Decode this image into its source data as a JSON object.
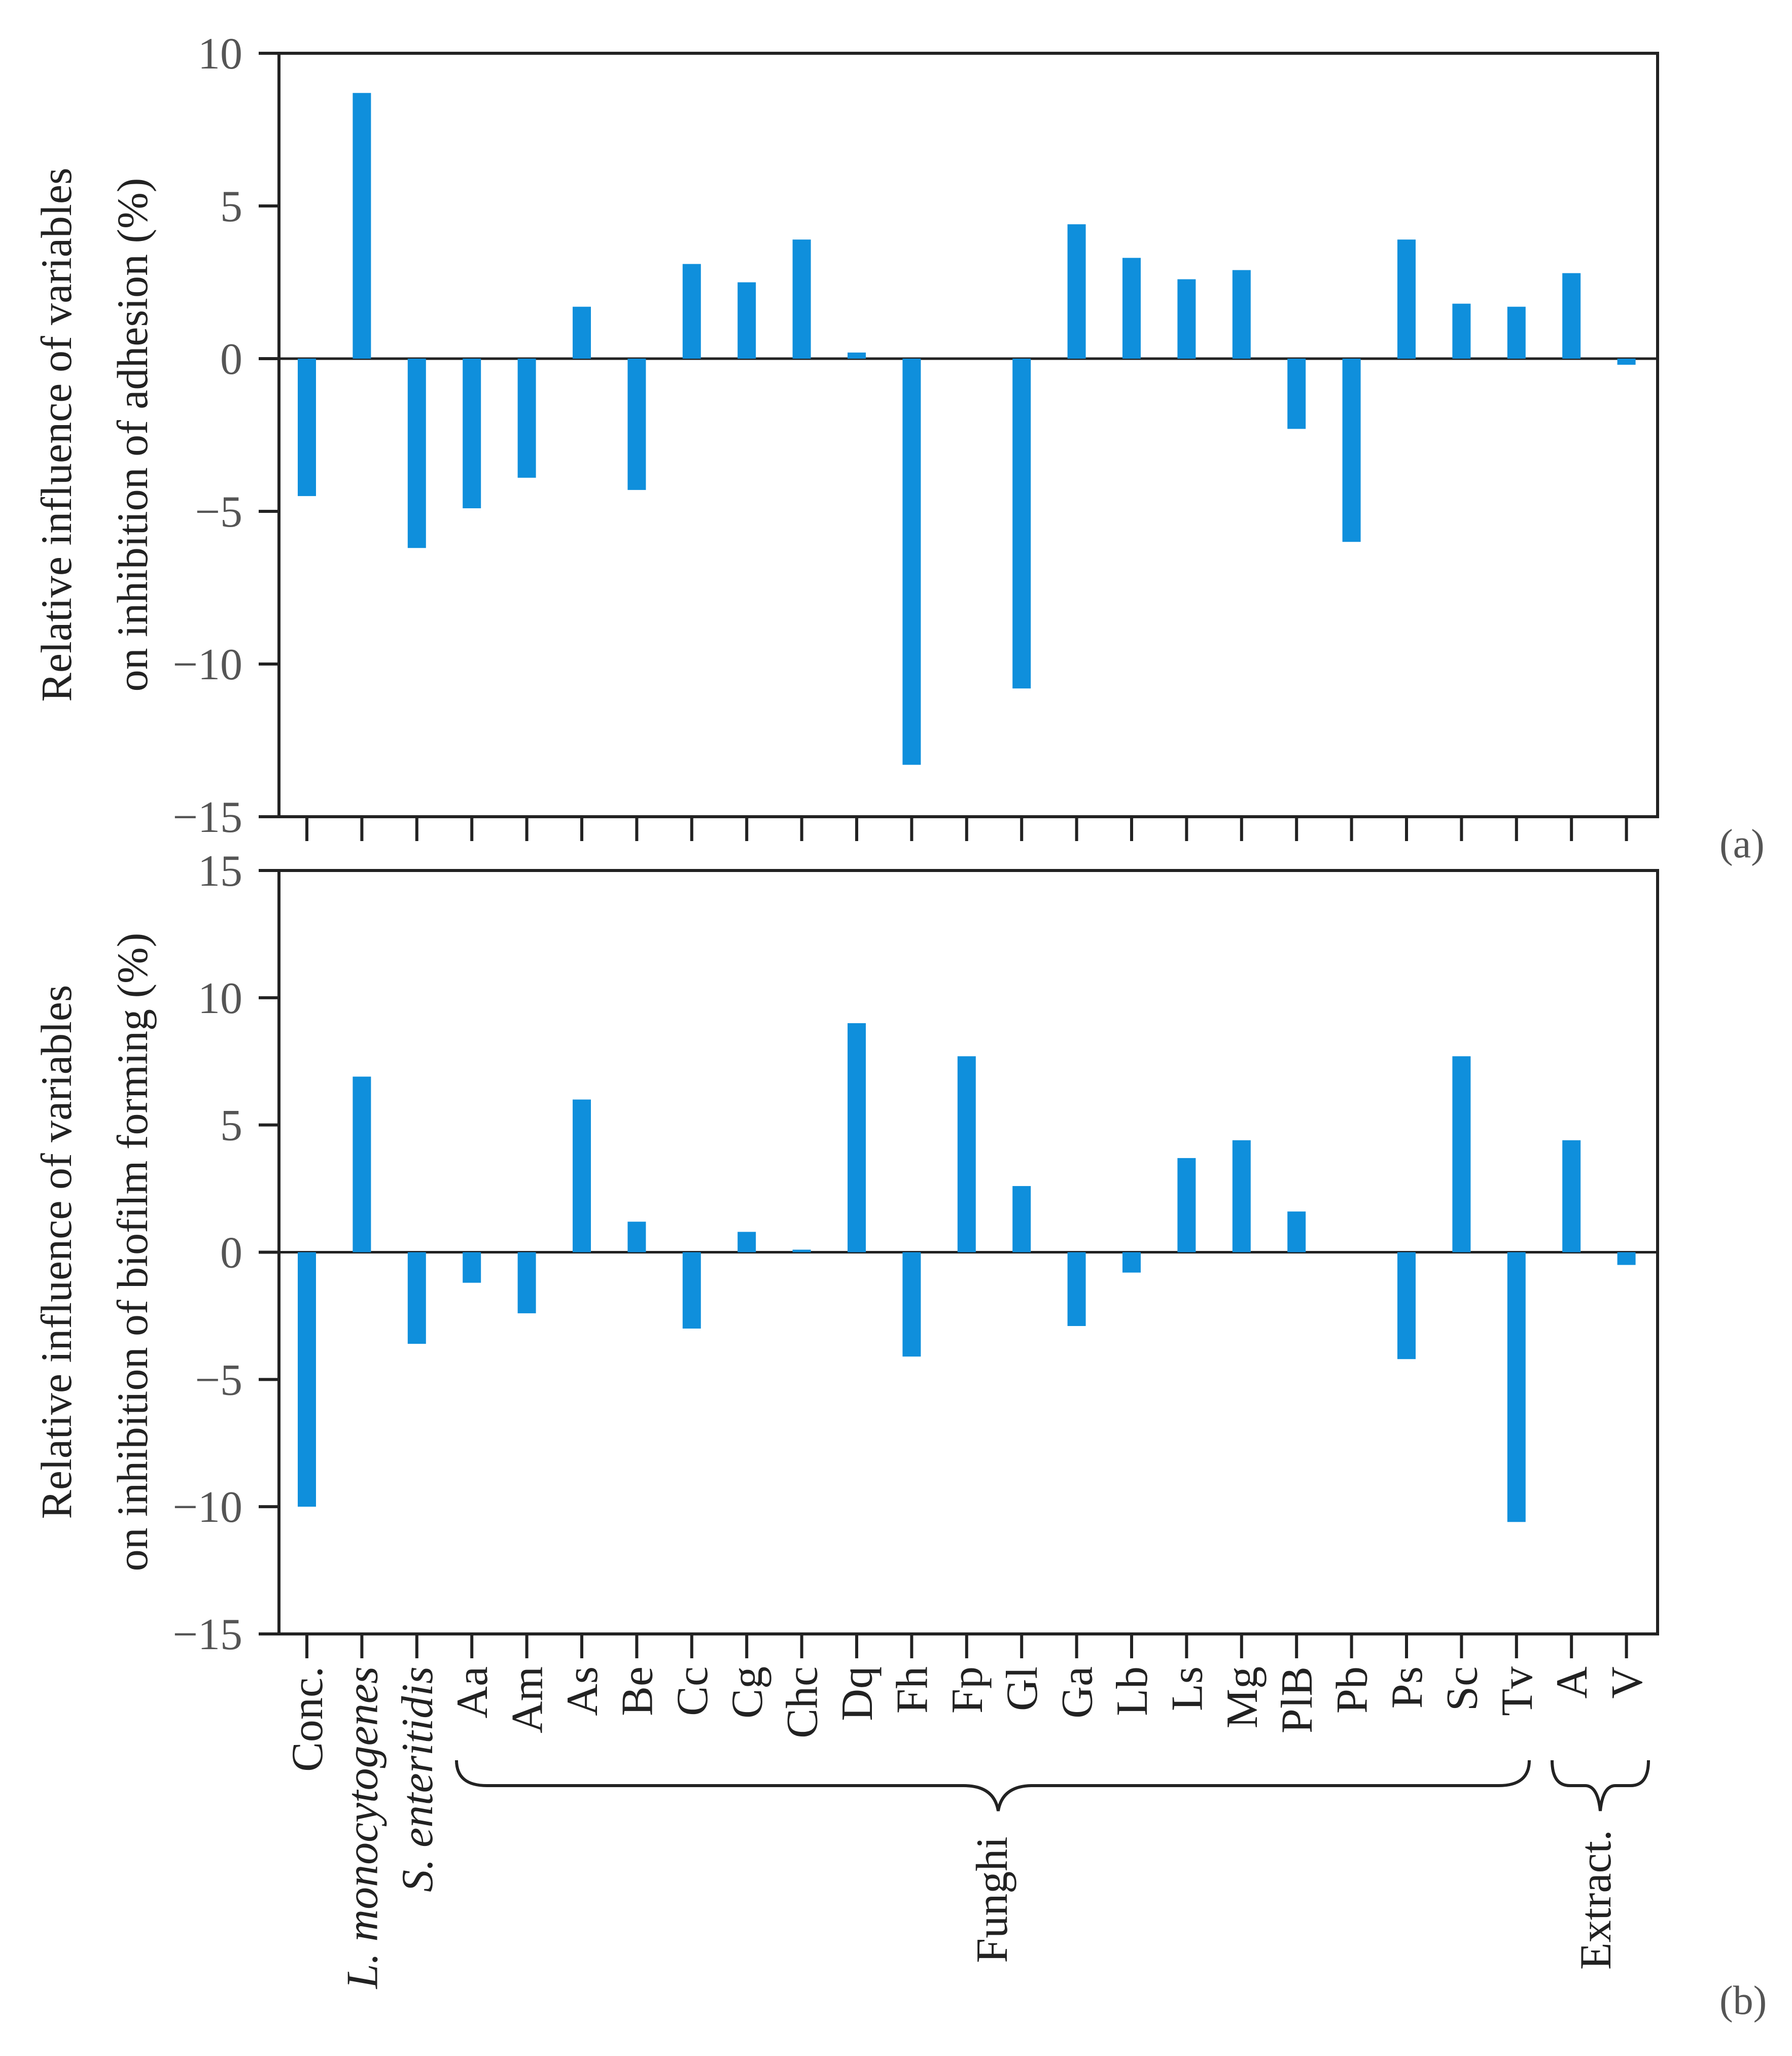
{
  "chart_data": [
    {
      "type": "bar",
      "panel": "(a)",
      "ylabel": [
        "Relative influence of variables",
        "on inhibition of adhesion (%)"
      ],
      "ylim": [
        -15,
        10
      ],
      "yticks": [
        10,
        5,
        0,
        -5,
        -10,
        -15
      ],
      "yticklabels": [
        "10",
        "5",
        "0",
        "−5",
        "−10",
        "−15"
      ],
      "categories": [
        "Conc.",
        "L. monocytogenes",
        "S. enteritidis",
        "Aa",
        "Am",
        "As",
        "Be",
        "Cc",
        "Cg",
        "Chc",
        "Dq",
        "Fh",
        "Fp",
        "Gl",
        "Ga",
        "Lb",
        "Ls",
        "Mg",
        "PlB",
        "Pb",
        "Ps",
        "Sc",
        "Tv",
        "A",
        "V"
      ],
      "values": [
        -4.5,
        8.7,
        -6.2,
        -4.9,
        -3.9,
        1.7,
        -4.3,
        3.1,
        2.5,
        3.9,
        0.2,
        -13.3,
        0,
        -10.8,
        4.4,
        3.3,
        2.6,
        2.9,
        -2.3,
        -6.0,
        3.9,
        1.8,
        1.7,
        2.8,
        -0.2
      ]
    },
    {
      "type": "bar",
      "panel": "(b)",
      "ylabel": [
        "Relative influence of variables",
        "on inhibition of biofilm forming (%)"
      ],
      "ylim": [
        -15,
        15
      ],
      "yticks": [
        15,
        10,
        5,
        0,
        -5,
        -10,
        -15
      ],
      "yticklabels": [
        "15",
        "10",
        "5",
        "0",
        "−5",
        "−10",
        "−15"
      ],
      "categories": [
        "Conc.",
        "L. monocytogenes",
        "S. enteritidis",
        "Aa",
        "Am",
        "As",
        "Be",
        "Cc",
        "Cg",
        "Chc",
        "Dq",
        "Fh",
        "Fp",
        "Gl",
        "Ga",
        "Lb",
        "Ls",
        "Mg",
        "PlB",
        "Pb",
        "Ps",
        "Sc",
        "Tv",
        "A",
        "V"
      ],
      "values": [
        -10.0,
        6.9,
        -3.6,
        -1.2,
        -2.4,
        6.0,
        1.2,
        -3.0,
        0.8,
        0.1,
        9.0,
        -4.1,
        7.7,
        2.6,
        -2.9,
        -0.8,
        3.7,
        4.4,
        1.6,
        0,
        -4.2,
        7.7,
        -10.6,
        4.4,
        -0.5
      ]
    }
  ],
  "category_labels": [
    "Conc.",
    "L. monocytogenes",
    "S. enteritidis",
    "Aa",
    "Am",
    "As",
    "Be",
    "Cc",
    "Cg",
    "Chc",
    "Dq",
    "Fh",
    "Fp",
    "Gl",
    "Ga",
    "Lb",
    "Ls",
    "Mg",
    "PlB",
    "Pb",
    "Ps",
    "Sc",
    "Tv",
    "A",
    "V"
  ],
  "category_italic": [
    false,
    true,
    true,
    false,
    false,
    false,
    false,
    false,
    false,
    false,
    false,
    false,
    false,
    false,
    false,
    false,
    false,
    false,
    false,
    false,
    false,
    false,
    false,
    false,
    false
  ],
  "groups": {
    "funghi": "Funghi",
    "extract": "Extract."
  },
  "colors": {
    "bar": "#0f8fdc",
    "axis": "#222222",
    "tick_text": "#555555"
  }
}
